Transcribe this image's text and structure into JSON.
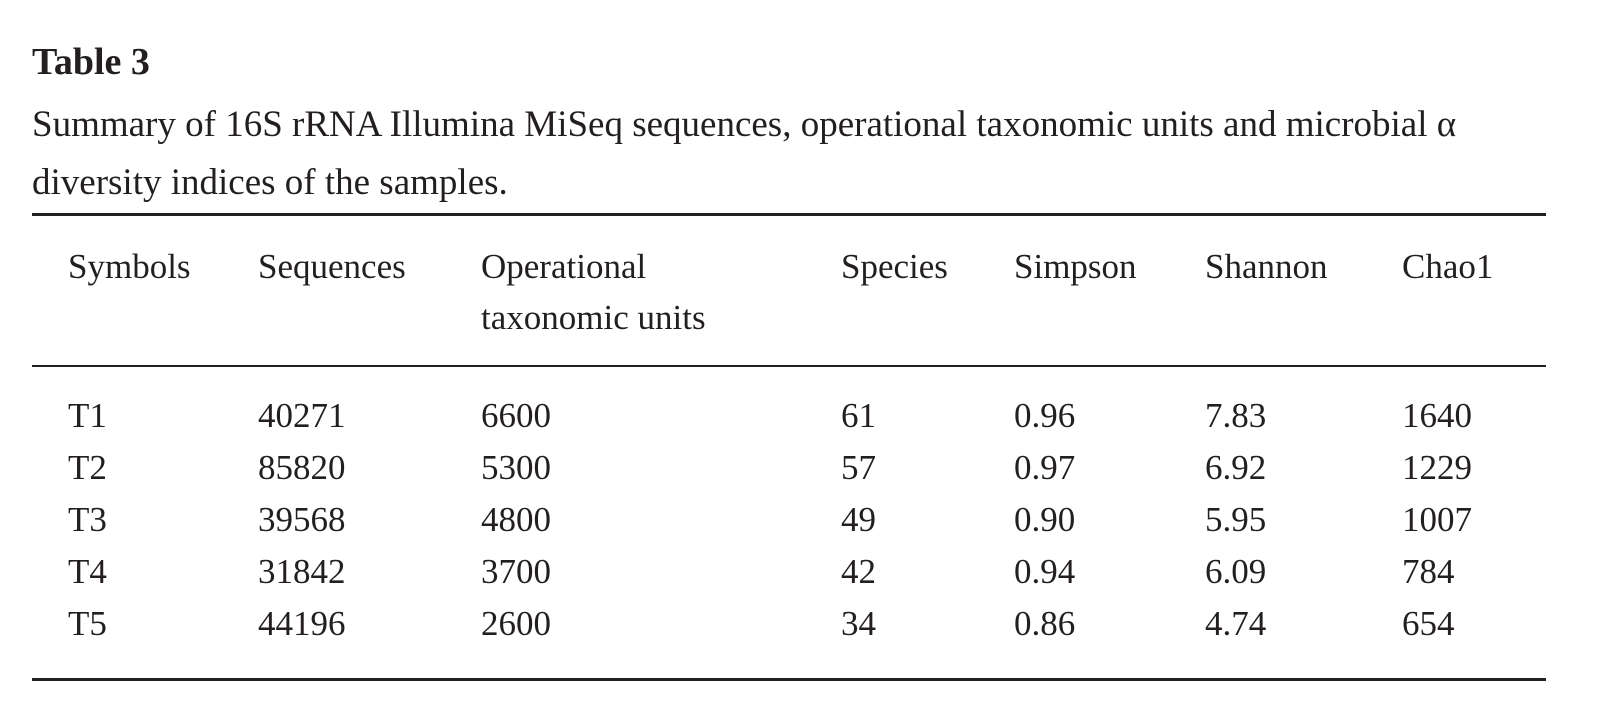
{
  "table": {
    "label": "Table 3",
    "caption": "Summary of 16S rRNA Illumina MiSeq sequences, operational taxonomic units and microbial α diversity indices of the samples.",
    "header": [
      "Symbols",
      "Sequences",
      "Operational taxonomic units",
      "Species",
      "Simpson",
      "Shannon",
      "Chao1"
    ],
    "rows": [
      [
        "T1",
        "40271",
        "6600",
        "61",
        "0.96",
        "7.83",
        "1640"
      ],
      [
        "T2",
        "85820",
        "5300",
        "57",
        "0.97",
        "6.92",
        "1229"
      ],
      [
        "T3",
        "39568",
        "4800",
        "49",
        "0.90",
        "5.95",
        "1007"
      ],
      [
        "T4",
        "31842",
        "3700",
        "42",
        "0.94",
        "6.09",
        "784"
      ],
      [
        "T5",
        "44196",
        "2600",
        "34",
        "0.86",
        "4.74",
        "654"
      ]
    ]
  }
}
